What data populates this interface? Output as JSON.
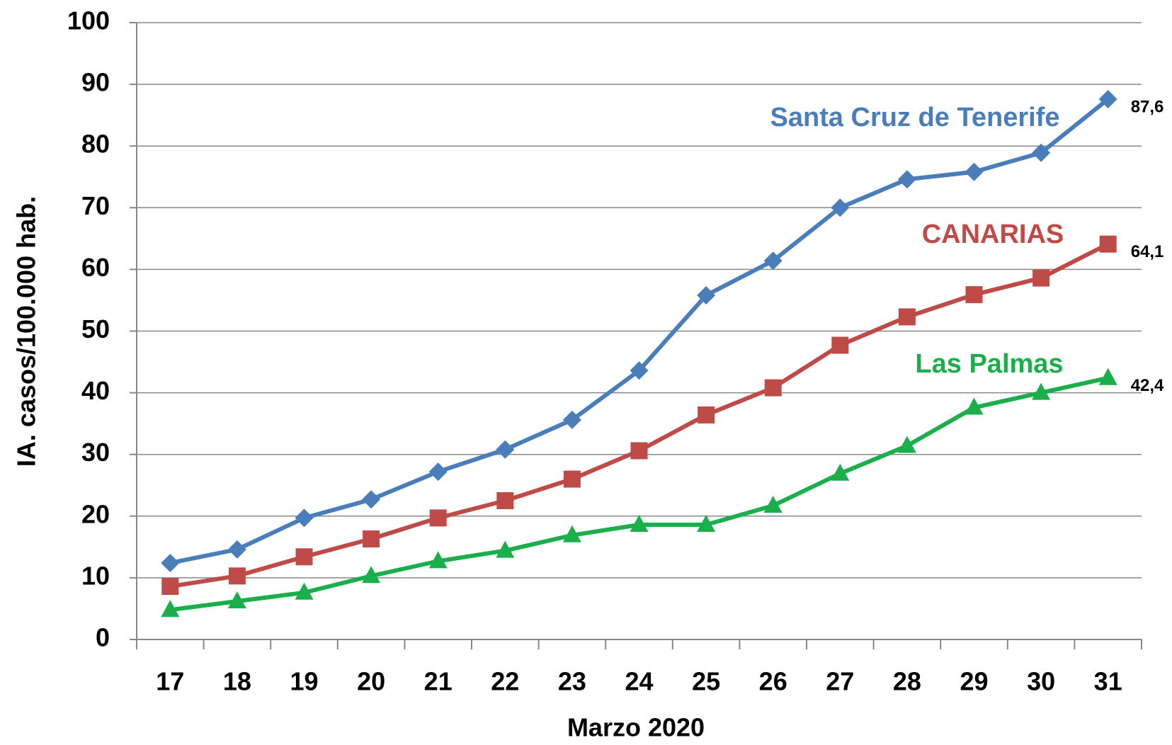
{
  "chart_data": {
    "type": "line",
    "xlabel": "Marzo 2020",
    "ylabel": "IA. casos/100.000 hab.",
    "categories": [
      "17",
      "18",
      "19",
      "20",
      "21",
      "22",
      "23",
      "24",
      "25",
      "26",
      "27",
      "28",
      "29",
      "30",
      "31"
    ],
    "series": [
      {
        "name": "Santa Cruz de Tenerife",
        "color": "#4a7ebb",
        "marker": "diamond",
        "values": [
          12.4,
          14.6,
          19.7,
          22.7,
          27.2,
          30.8,
          35.6,
          43.6,
          55.8,
          61.4,
          70.0,
          74.6,
          75.8,
          78.9,
          87.6
        ],
        "value_labels": [
          null,
          null,
          null,
          null,
          null,
          null,
          null,
          null,
          null,
          null,
          null,
          null,
          null,
          null,
          "87,6"
        ]
      },
      {
        "name": "CANARIAS",
        "color": "#be4b48",
        "marker": "square",
        "values": [
          8.6,
          10.3,
          13.4,
          16.3,
          19.7,
          22.5,
          26.0,
          30.6,
          36.4,
          40.8,
          47.7,
          52.3,
          55.9,
          58.6,
          64.1
        ],
        "value_labels": [
          null,
          null,
          null,
          null,
          null,
          null,
          null,
          null,
          null,
          null,
          null,
          null,
          null,
          null,
          "64,1"
        ]
      },
      {
        "name": "Las Palmas",
        "color": "#1aaf4b",
        "marker": "triangle",
        "values": [
          4.8,
          6.2,
          7.6,
          10.3,
          12.7,
          14.4,
          16.9,
          18.6,
          18.6,
          21.7,
          26.9,
          31.4,
          37.6,
          40.0,
          42.4
        ],
        "value_labels": [
          null,
          null,
          null,
          null,
          null,
          null,
          null,
          null,
          null,
          null,
          null,
          null,
          null,
          null,
          "42,4"
        ]
      }
    ],
    "ylim": [
      0,
      100
    ],
    "yticks": [
      0,
      10,
      20,
      30,
      40,
      50,
      60,
      70,
      80,
      90,
      100
    ],
    "grid": true
  }
}
